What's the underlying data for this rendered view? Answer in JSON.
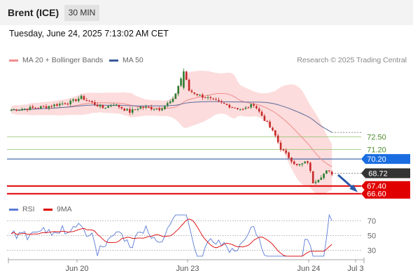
{
  "header": {
    "title": "Brent (ICE)",
    "timeframe": "30 MIN"
  },
  "datetime": "Tuesday, June 24, 2025 7:13:02 AM CET",
  "legend_main": [
    {
      "label": "MA 20 + Bollinger Bands",
      "color": "#f08c8c"
    },
    {
      "label": "MA 50",
      "color": "#3a5a98"
    }
  ],
  "credit": "Research © 2025 Trading Central",
  "legend_rsi": [
    {
      "label": "RSI",
      "color": "#5b7bd6"
    },
    {
      "label": "9MA",
      "color": "#e00000"
    }
  ],
  "colors": {
    "up": "#2e7d32",
    "down": "#c62828",
    "bb": "#fbd6d6",
    "ma20": "#f08c8c",
    "ma50": "#5a6a9c",
    "rsi": "#5b7bd6",
    "rsi_ma": "#e00000",
    "green_level": "#8ec26a",
    "blue_level": "#1f4b99",
    "red_level": "#e00000",
    "blue_tag": "#1a6de0",
    "price_tag": "#333333",
    "arrow": "#2e5aa8"
  },
  "chart_data": {
    "type": "candlestick",
    "y_range": [
      66.0,
      79.8
    ],
    "x_ticks": [
      "Jun 20",
      "Jun 23",
      "Jun 24",
      "Jul 3"
    ],
    "levels": [
      {
        "value": 72.5,
        "label": "72.50",
        "kind": "resistance"
      },
      {
        "value": 71.2,
        "label": "71.20",
        "kind": "resistance"
      },
      {
        "value": 70.2,
        "label": "70.20",
        "kind": "pivot"
      },
      {
        "value": 67.4,
        "label": "67.40",
        "kind": "support"
      },
      {
        "value": 66.6,
        "label": "66.60",
        "kind": "support"
      }
    ],
    "last_price": {
      "value": 68.72,
      "label": "68.72"
    },
    "rsi_levels": [
      70,
      50,
      30
    ],
    "rsi_range": [
      20,
      80
    ]
  }
}
